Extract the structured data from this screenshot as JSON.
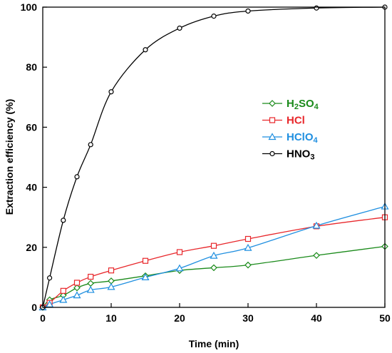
{
  "chart_data": {
    "type": "line",
    "title": "",
    "xlabel": "Time (min)",
    "ylabel": "Extraction efficiency (%)",
    "xlim": [
      0,
      50
    ],
    "ylim": [
      0,
      100
    ],
    "xticks": [
      0,
      10,
      20,
      30,
      40,
      50
    ],
    "yticks": [
      0,
      20,
      40,
      60,
      80,
      100
    ],
    "grid": false,
    "legend_position": "right-middle",
    "series": [
      {
        "name": "H2SO4",
        "name_parts": [
          [
            "H",
            "normal"
          ],
          [
            "2",
            "sub"
          ],
          [
            "SO",
            "normal"
          ],
          [
            "4",
            "sub"
          ]
        ],
        "color": "#1a8a1a",
        "marker": "diamond",
        "x": [
          0,
          1,
          3,
          5,
          7,
          10,
          15,
          20,
          25,
          30,
          40,
          50
        ],
        "y": [
          0,
          2.5,
          4.0,
          6.5,
          8.0,
          8.8,
          10.5,
          12.3,
          13.2,
          14.1,
          17.3,
          20.3
        ]
      },
      {
        "name": "HCl",
        "name_parts": [
          [
            "HCl",
            "normal"
          ]
        ],
        "color": "#e8262a",
        "marker": "square",
        "x": [
          0,
          1,
          3,
          5,
          7,
          10,
          15,
          20,
          25,
          30,
          40,
          50
        ],
        "y": [
          0,
          1.5,
          5.5,
          8.2,
          10.2,
          12.3,
          15.5,
          18.4,
          20.5,
          22.8,
          27.0,
          30.0
        ]
      },
      {
        "name": "HClO4",
        "name_parts": [
          [
            "HClO",
            "normal"
          ],
          [
            "4",
            "sub"
          ]
        ],
        "color": "#1f8fe0",
        "marker": "triangle",
        "x": [
          0,
          1,
          3,
          5,
          7,
          10,
          15,
          20,
          25,
          30,
          40,
          50
        ],
        "y": [
          0,
          1.0,
          2.5,
          4.0,
          5.8,
          6.8,
          10.0,
          13.0,
          17.2,
          19.8,
          27.2,
          33.6
        ]
      },
      {
        "name": "HNO3",
        "name_parts": [
          [
            "HNO",
            "normal"
          ],
          [
            "3",
            "sub"
          ]
        ],
        "color": "#000000",
        "marker": "circle",
        "x": [
          0,
          1,
          3,
          5,
          7,
          10,
          15,
          20,
          25,
          30,
          40,
          50
        ],
        "y": [
          0,
          9.8,
          29.0,
          43.5,
          54.2,
          71.8,
          85.8,
          93.0,
          97.0,
          98.7,
          99.7,
          100
        ]
      }
    ]
  }
}
